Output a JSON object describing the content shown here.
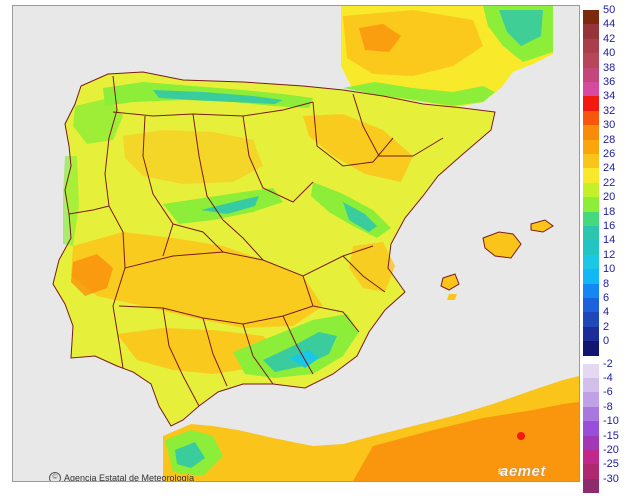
{
  "credit": "Agencia Estatal de Meteorología",
  "brand": "aemet",
  "legend": {
    "positive": [
      {
        "label": "50",
        "color": "#7b2a0e"
      },
      {
        "label": "44",
        "color": "#97343a"
      },
      {
        "label": "42",
        "color": "#a83f4a"
      },
      {
        "label": "40",
        "color": "#b8465a"
      },
      {
        "label": "38",
        "color": "#c4477c"
      },
      {
        "label": "36",
        "color": "#d84a9d"
      },
      {
        "label": "34",
        "color": "#f21a10"
      },
      {
        "label": "32",
        "color": "#f7560c"
      },
      {
        "label": "30",
        "color": "#f98b0b"
      },
      {
        "label": "28",
        "color": "#faa50b"
      },
      {
        "label": "26",
        "color": "#fbc41b"
      },
      {
        "label": "24",
        "color": "#f8ea2a"
      },
      {
        "label": "22",
        "color": "#c4f02a"
      },
      {
        "label": "20",
        "color": "#8cee38"
      },
      {
        "label": "18",
        "color": "#44d97c"
      },
      {
        "label": "16",
        "color": "#2cc6ae"
      },
      {
        "label": "14",
        "color": "#22c4c4"
      },
      {
        "label": "12",
        "color": "#1ac8e6"
      },
      {
        "label": "10",
        "color": "#12b8f6"
      },
      {
        "label": "8",
        "color": "#1488f2"
      },
      {
        "label": "6",
        "color": "#1c62dc"
      },
      {
        "label": "4",
        "color": "#2048b8"
      },
      {
        "label": "2",
        "color": "#1c2c98"
      },
      {
        "label": "0",
        "color": "#121670"
      }
    ],
    "negative": [
      {
        "label": "-2",
        "color": "#e4d8f2"
      },
      {
        "label": "-4",
        "color": "#d2c0ec"
      },
      {
        "label": "-6",
        "color": "#c0a0e6"
      },
      {
        "label": "-8",
        "color": "#a878e0"
      },
      {
        "label": "-10",
        "color": "#9850dc"
      },
      {
        "label": "-15",
        "color": "#a038b8"
      },
      {
        "label": "-20",
        "color": "#c0288c"
      },
      {
        "label": "-25",
        "color": "#b02870"
      },
      {
        "label": "-30",
        "color": "#8c2c6c"
      }
    ]
  },
  "colors": {
    "sea": "#e8e8e8",
    "land_base": "#e6f03a",
    "warm": "#fbc41b",
    "hot": "#f98b0b",
    "cool": "#8cee38",
    "cold": "#2cc6ae",
    "borders": "#7a1a1a"
  }
}
